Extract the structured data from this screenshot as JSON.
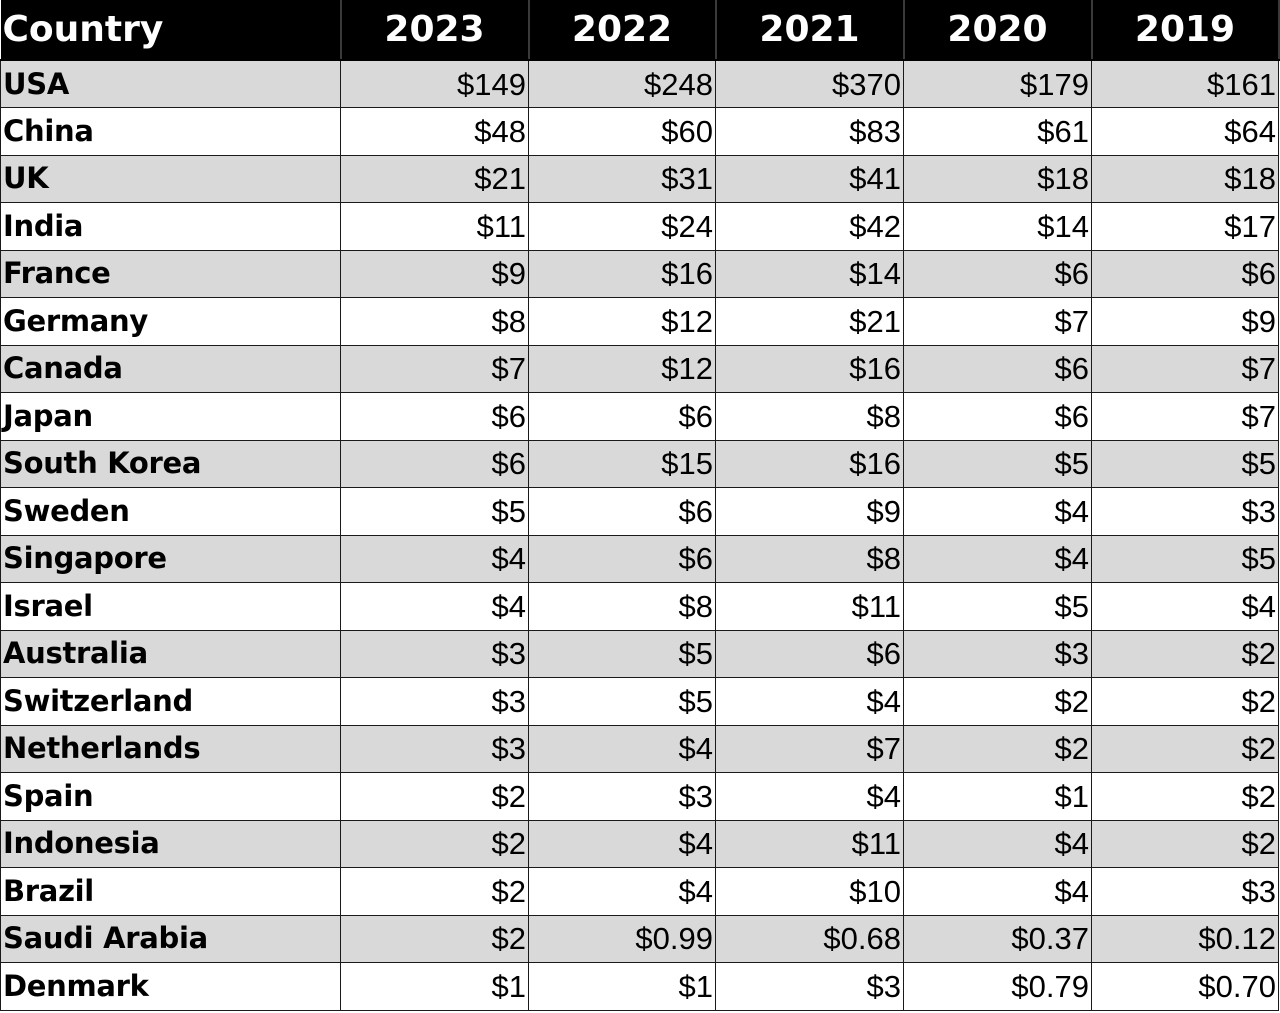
{
  "chart_data": {
    "type": "table",
    "columns": [
      "Country",
      "2023",
      "2022",
      "2021",
      "2020",
      "2019"
    ],
    "rows": [
      {
        "country": "USA",
        "values": [
          "$149",
          "$248",
          "$370",
          "$179",
          "$161"
        ]
      },
      {
        "country": "China",
        "values": [
          "$48",
          "$60",
          "$83",
          "$61",
          "$64"
        ]
      },
      {
        "country": "UK",
        "values": [
          "$21",
          "$31",
          "$41",
          "$18",
          "$18"
        ]
      },
      {
        "country": "India",
        "values": [
          "$11",
          "$24",
          "$42",
          "$14",
          "$17"
        ]
      },
      {
        "country": "France",
        "values": [
          "$9",
          "$16",
          "$14",
          "$6",
          "$6"
        ]
      },
      {
        "country": "Germany",
        "values": [
          "$8",
          "$12",
          "$21",
          "$7",
          "$9"
        ]
      },
      {
        "country": "Canada",
        "values": [
          "$7",
          "$12",
          "$16",
          "$6",
          "$7"
        ]
      },
      {
        "country": "Japan",
        "values": [
          "$6",
          "$6",
          "$8",
          "$6",
          "$7"
        ]
      },
      {
        "country": "South Korea",
        "values": [
          "$6",
          "$15",
          "$16",
          "$5",
          "$5"
        ]
      },
      {
        "country": "Sweden",
        "values": [
          "$5",
          "$6",
          "$9",
          "$4",
          "$3"
        ]
      },
      {
        "country": "Singapore",
        "values": [
          "$4",
          "$6",
          "$8",
          "$4",
          "$5"
        ]
      },
      {
        "country": "Israel",
        "values": [
          "$4",
          "$8",
          "$11",
          "$5",
          "$4"
        ]
      },
      {
        "country": "Australia",
        "values": [
          "$3",
          "$5",
          "$6",
          "$3",
          "$2"
        ]
      },
      {
        "country": "Switzerland",
        "values": [
          "$3",
          "$5",
          "$4",
          "$2",
          "$2"
        ]
      },
      {
        "country": "Netherlands",
        "values": [
          "$3",
          "$4",
          "$7",
          "$2",
          "$2"
        ]
      },
      {
        "country": "Spain",
        "values": [
          "$2",
          "$3",
          "$4",
          "$1",
          "$2"
        ]
      },
      {
        "country": "Indonesia",
        "values": [
          "$2",
          "$4",
          "$11",
          "$4",
          "$2"
        ]
      },
      {
        "country": "Brazil",
        "values": [
          "$2",
          "$4",
          "$10",
          "$4",
          "$3"
        ]
      },
      {
        "country": "Saudi Arabia",
        "values": [
          "$2",
          "$0.99",
          "$0.68",
          "$0.37",
          "$0.12"
        ]
      },
      {
        "country": "Denmark",
        "values": [
          "$1",
          "$1",
          "$3",
          "$0.79",
          "$0.70"
        ]
      }
    ],
    "colors": {
      "header_background": "#000000",
      "header_text": "#ffffff",
      "row_shade": "#d9d9d9",
      "row_plain": "#ffffff",
      "border": "#1a1a1a"
    }
  }
}
